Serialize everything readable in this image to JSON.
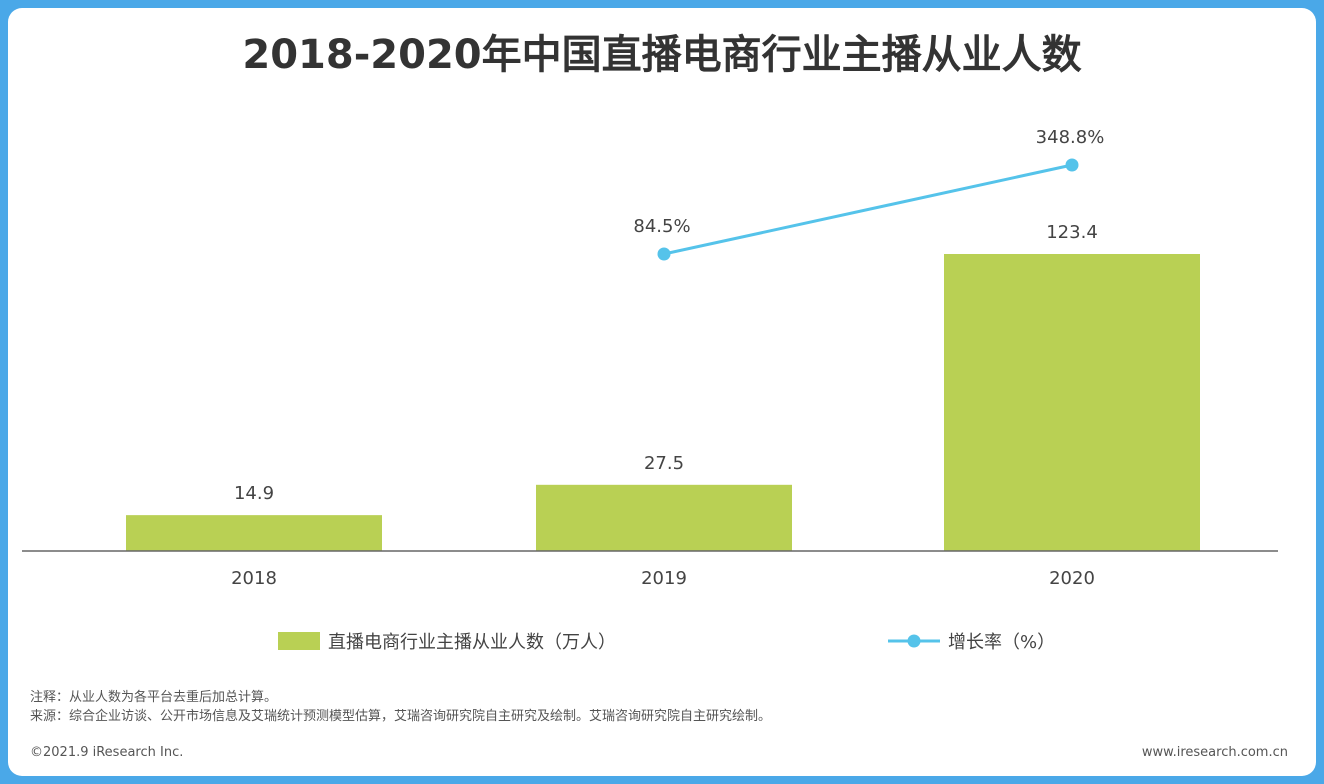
{
  "title": "2018-2020年中国直播电商行业主播从业人数",
  "chart_data": {
    "type": "bar+line",
    "categories": [
      "2018",
      "2019",
      "2020"
    ],
    "series": [
      {
        "name": "直播电商行业主播从业人数（万人）",
        "type": "bar",
        "values": [
          14.9,
          27.5,
          123.4
        ],
        "labels": [
          "14.9",
          "27.5",
          "123.4"
        ],
        "color": "#b9d054"
      },
      {
        "name": "增长率（%）",
        "type": "line",
        "values": [
          null,
          84.5,
          348.8
        ],
        "labels": [
          null,
          "84.5%",
          "348.8%"
        ],
        "color": "#55c3ea"
      }
    ],
    "ylim": [
      0,
      125
    ],
    "y2lim": [
      0,
      420
    ]
  },
  "notes": {
    "note": "注释：从业人数为各平台去重后加总计算。",
    "source": "来源：综合企业访谈、公开市场信息及艾瑞统计预测模型估算，艾瑞咨询研究院自主研究及绘制。艾瑞咨询研究院自主研究绘制。"
  },
  "footer": {
    "copyright": "©2021.9 iResearch Inc.",
    "website": "www.iresearch.com.cn"
  }
}
